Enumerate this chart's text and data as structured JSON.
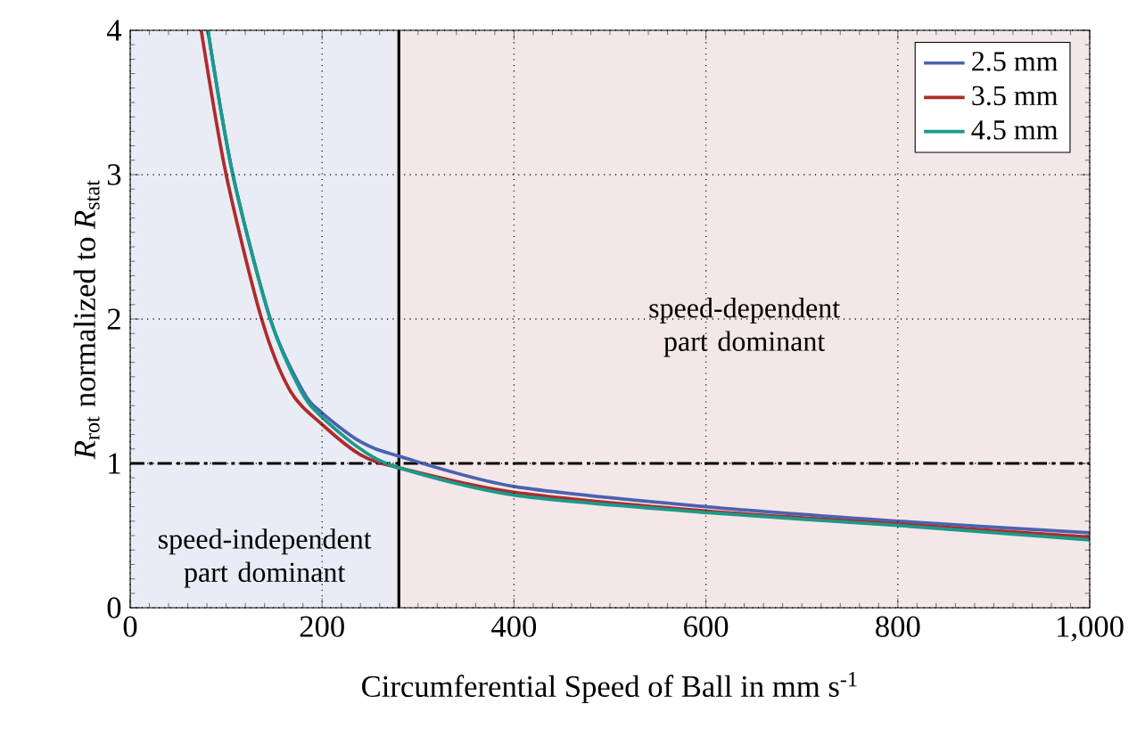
{
  "chart_data": {
    "type": "line",
    "xlabel": "Circumferential Speed of Ball in mm s$^{-1}$",
    "ylabel": "*R*$_{rot}$ normalized to *R*$_{stat}$",
    "xlim": [
      0,
      1000
    ],
    "ylim": [
      0,
      4
    ],
    "xticks": [
      0,
      200,
      400,
      600,
      800,
      {
        "value": 1000,
        "label": "1,000"
      }
    ],
    "yticks": [
      0,
      1,
      2,
      3,
      4
    ],
    "series": [
      {
        "name": "2.5 mm",
        "color": "#4a62b0",
        "x": [
          81,
          107,
          146,
          180,
          200,
          240,
          280,
          400,
          600,
          800,
          1000
        ],
        "values": [
          4,
          3,
          2,
          1.5,
          1.35,
          1.15,
          1.05,
          0.84,
          0.7,
          0.6,
          0.52
        ]
      },
      {
        "name": "3.5 mm",
        "color": "#b02a2a",
        "x": [
          74,
          100,
          137,
          167,
          200,
          240,
          280,
          400,
          600,
          800,
          1000
        ],
        "values": [
          4,
          3,
          2,
          1.5,
          1.27,
          1.06,
          0.97,
          0.8,
          0.67,
          0.58,
          0.49
        ]
      },
      {
        "name": "4.5 mm",
        "color": "#1a9a8a",
        "x": [
          81,
          107,
          146,
          178,
          200,
          240,
          280,
          400,
          600,
          800,
          1000
        ],
        "values": [
          4,
          3,
          2,
          1.5,
          1.32,
          1.1,
          0.97,
          0.78,
          0.66,
          0.57,
          0.47
        ]
      }
    ],
    "bands": [
      {
        "axis": "x",
        "from": 0,
        "to": 280,
        "label": "speed-independent part dominant",
        "color": "#e9ecf5"
      },
      {
        "axis": "x",
        "from": 280,
        "to": 1000,
        "label": "speed-dependent part dominant",
        "color": "#f4e7e8"
      }
    ],
    "ref_lines": [
      {
        "axis": "x",
        "value": 280,
        "color": "#000000",
        "line_style": "solid"
      },
      {
        "axis": "y",
        "value": 1,
        "color": "#000000",
        "line_style": "dashdot"
      }
    ],
    "grid": true,
    "legend": "top right",
    "line_style": "solid",
    "marker": "none"
  }
}
